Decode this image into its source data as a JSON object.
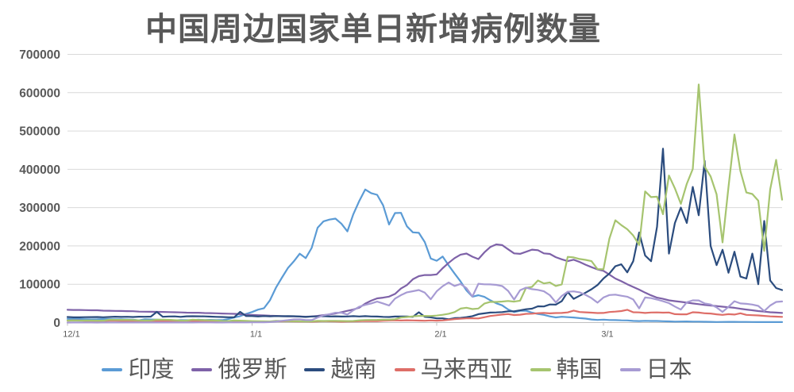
{
  "chart_data": {
    "type": "line",
    "title": "中国周边国家单日新增病例数量",
    "xlabel": "",
    "ylabel": "",
    "ylim": [
      0,
      700000
    ],
    "y_ticks": [
      0,
      100000,
      200000,
      300000,
      400000,
      500000,
      600000,
      700000
    ],
    "days": 121,
    "x_ticks": [
      {
        "day": 0,
        "label": "12/1"
      },
      {
        "day": 31,
        "label": "1/1"
      },
      {
        "day": 62,
        "label": "2/1"
      },
      {
        "day": 90,
        "label": "3/1"
      }
    ],
    "grid": "horizontal",
    "legend_position": "bottom",
    "colors": {
      "text": "#595959",
      "grid": "#D9D9D9",
      "axis": "#C0C0C0"
    },
    "series": [
      {
        "name": "印度",
        "id": "india",
        "color": "#5B9BD5",
        "values": [
          9800,
          9200,
          9200,
          8900,
          8300,
          8400,
          9400,
          9000,
          8500,
          8800,
          8000,
          7400,
          5800,
          8600,
          8000,
          7400,
          7100,
          7100,
          5300,
          6600,
          6300,
          6700,
          7500,
          6700,
          7000,
          6500,
          6400,
          9200,
          13200,
          16800,
          22800,
          27600,
          33800,
          37400,
          58100,
          90900,
          117100,
          142000,
          159600,
          179700,
          168100,
          194700,
          247400,
          264200,
          268800,
          271200,
          258100,
          238000,
          283000,
          317500,
          347300,
          337700,
          333500,
          306100,
          255900,
          285900,
          286400,
          251200,
          235500,
          234300,
          209900,
          167100,
          161400,
          172400,
          149400,
          128000,
          107500,
          83900,
          67600,
          71400,
          67100,
          58100,
          50400,
          44900,
          34100,
          27400,
          30600,
          30800,
          25900,
          22300,
          20000,
          16100,
          13400,
          15100,
          14100,
          13200,
          11500,
          10300,
          8000,
          6900,
          7600,
          6600,
          6400,
          5900,
          5500,
          4400,
          4000,
          4600,
          4200,
          4200,
          3600,
          3100,
          2500,
          2600,
          2900,
          2500,
          2500,
          2100,
          1800,
          1500,
          1600,
          1800,
          1900,
          1700,
          1700,
          1400,
          1300,
          1300,
          1200,
          1200,
          1300
        ]
      },
      {
        "name": "俄罗斯",
        "id": "russia",
        "color": "#7E62A8",
        "values": [
          33400,
          32900,
          33000,
          32600,
          32100,
          32000,
          31100,
          30800,
          30500,
          30200,
          29900,
          29600,
          28500,
          28400,
          28200,
          28000,
          27700,
          27400,
          27000,
          26500,
          25900,
          25700,
          25600,
          24900,
          24700,
          24300,
          23700,
          23200,
          22800,
          21900,
          20600,
          19800,
          19300,
          18600,
          17900,
          17300,
          16700,
          16200,
          16100,
          15800,
          15300,
          16000,
          17300,
          19500,
          21200,
          23800,
          27200,
          30700,
          33900,
          38900,
          49500,
          57200,
          63200,
          65100,
          67800,
          74700,
          88800,
          98000,
          113100,
          121200,
          124100,
          124100,
          125800,
          141900,
          155800,
          168200,
          177300,
          180100,
          171900,
          165600,
          183100,
          197100,
          203900,
          202200,
          191200,
          180500,
          179300,
          184700,
          190300,
          188800,
          180600,
          179100,
          170700,
          165100,
          160300,
          164100,
          158200,
          151000,
          144600,
          138700,
          135000,
          125000,
          115000,
          108000,
          100000,
          93000,
          86000,
          78000,
          71000,
          65000,
          62000,
          58000,
          56000,
          54000,
          52000,
          50000,
          48000,
          46000,
          44500,
          43000,
          41500,
          40000,
          38500,
          36000,
          34000,
          32000,
          30000,
          28500,
          27000,
          26000,
          25000
        ]
      },
      {
        "name": "越南",
        "id": "vietnam",
        "color": "#2B4C7E",
        "values": [
          14500,
          13700,
          13700,
          14000,
          14300,
          14600,
          13800,
          14600,
          15300,
          14800,
          15100,
          14600,
          15400,
          15200,
          15500,
          28000,
          15200,
          15900,
          16100,
          15000,
          16300,
          16600,
          16400,
          16200,
          15600,
          14900,
          14400,
          13900,
          13800,
          27900,
          17000,
          17000,
          16000,
          17000,
          16300,
          17000,
          16500,
          16700,
          16600,
          15800,
          14800,
          16000,
          16100,
          16700,
          16000,
          16400,
          15700,
          15900,
          16800,
          16000,
          16700,
          15900,
          15700,
          15000,
          14400,
          15700,
          15900,
          15700,
          14900,
          27000,
          14900,
          13700,
          11000,
          10900,
          8600,
          11600,
          12200,
          14100,
          16800,
          21900,
          24000,
          26000,
          26500,
          27300,
          29400,
          29500,
          31800,
          34700,
          36200,
          42400,
          42000,
          47200,
          46900,
          55900,
          80000,
          62000,
          70000,
          78000,
          87000,
          98000,
          115000,
          128000,
          147000,
          152000,
          131000,
          160000,
          235000,
          175000,
          160000,
          250000,
          454000,
          180000,
          260000,
          300000,
          260000,
          354000,
          280000,
          422000,
          200000,
          150000,
          190000,
          130000,
          185000,
          120000,
          115000,
          180000,
          100000,
          265000,
          110000,
          90000,
          85000
        ]
      },
      {
        "name": "马来西亚",
        "id": "malaysia",
        "color": "#DE6E68",
        "values": [
          5000,
          5600,
          5400,
          4300,
          4600,
          4300,
          3800,
          5000,
          5000,
          4400,
          4100,
          3500,
          3500,
          4600,
          4100,
          3900,
          3500,
          3100,
          2300,
          3000,
          3200,
          3200,
          2900,
          2600,
          2800,
          2800,
          2500,
          2700,
          3700,
          3300,
          3400,
          3000,
          2700,
          2400,
          2700,
          3500,
          3400,
          3300,
          3200,
          2900,
          2600,
          2300,
          3200,
          3700,
          3300,
          3100,
          2300,
          2900,
          3200,
          3500,
          4100,
          4000,
          3900,
          4700,
          5400,
          5700,
          5400,
          6100,
          5500,
          5100,
          4800,
          5600,
          4900,
          5600,
          7200,
          9100,
          10100,
          11000,
          11100,
          10800,
          13900,
          17100,
          19100,
          20900,
          22100,
          19600,
          20500,
          22800,
          23100,
          24500,
          25100,
          24000,
          24800,
          25100,
          26500,
          31200,
          27500,
          26700,
          25900,
          24900,
          25100,
          27500,
          28500,
          30000,
          33400,
          27000,
          26500,
          25100,
          26300,
          26500,
          25900,
          26300,
          22000,
          21500,
          21500,
          27000,
          26000,
          24300,
          23600,
          21500,
          20000,
          22000,
          21000,
          24300,
          20000,
          19200,
          18600,
          17500,
          16100,
          15600,
          15000
        ]
      },
      {
        "name": "韩国",
        "id": "south-korea",
        "color": "#A6C46F",
        "values": [
          5100,
          5300,
          4900,
          5400,
          5100,
          5000,
          5000,
          7200,
          7100,
          7000,
          7000,
          6700,
          5800,
          5300,
          5600,
          7600,
          7400,
          7300,
          6200,
          5300,
          5200,
          7500,
          6900,
          6200,
          5800,
          5400,
          4200,
          3900,
          5400,
          4900,
          4400,
          3800,
          3400,
          3100,
          3000,
          4400,
          4100,
          3700,
          3500,
          3400,
          3000,
          3100,
          4400,
          4200,
          4500,
          4400,
          4200,
          3900,
          4100,
          5800,
          6600,
          6800,
          7000,
          7600,
          7500,
          8600,
          13000,
          14500,
          16100,
          17500,
          17500,
          17100,
          18300,
          20300,
          22900,
          27400,
          36400,
          38700,
          35300,
          36700,
          49600,
          54100,
          53900,
          54900,
          56400,
          54600,
          57200,
          90400,
          93100,
          109800,
          102200,
          104800,
          95400,
          99600,
          171500,
          170000,
          165900,
          163600,
          160200,
          139600,
          139000,
          219200,
          266900,
          254300,
          243600,
          227100,
          202700,
          342400,
          327500,
          328500,
          283000,
          383700,
          350200,
          309800,
          362300,
          400700,
          621300,
          407000,
          381500,
          334700,
          209200,
          354000,
          490900,
          395600,
          339500,
          335600,
          318100,
          187200,
          347600,
          424600,
          320700
        ]
      },
      {
        "name": "日本",
        "id": "japan",
        "color": "#A79BD3",
        "values": [
          100,
          140,
          120,
          160,
          130,
          90,
          120,
          150,
          140,
          130,
          180,
          180,
          150,
          120,
          150,
          160,
          180,
          180,
          240,
          180,
          170,
          260,
          320,
          320,
          320,
          260,
          210,
          390,
          500,
          510,
          460,
          530,
          550,
          780,
          1300,
          2600,
          4500,
          6200,
          8200,
          8500,
          6400,
          6400,
          13200,
          18900,
          22000,
          25700,
          25600,
          21000,
          32200,
          41500,
          46200,
          49900,
          54600,
          50000,
          44500,
          62600,
          71600,
          78900,
          81800,
          84900,
          78100,
          60800,
          81700,
          94900,
          104500,
          95500,
          100900,
          89900,
          68000,
          101300,
          99800,
          99700,
          98400,
          95200,
          82600,
          60100,
          84200,
          91100,
          87100,
          85300,
          81600,
          71500,
          52700,
          69400,
          80400,
          81300,
          78900,
          72300,
          63700,
          51900,
          65400,
          71900,
          72800,
          69900,
          67600,
          60200,
          37100,
          65400,
          63700,
          60000,
          55800,
          50800,
          41900,
          34000,
          53100,
          57900,
          57800,
          49900,
          47300,
          39600,
          27700,
          41000,
          55800,
          49900,
          48900,
          47100,
          43400,
          30200,
          44500,
          53800,
          55000
        ]
      }
    ]
  }
}
